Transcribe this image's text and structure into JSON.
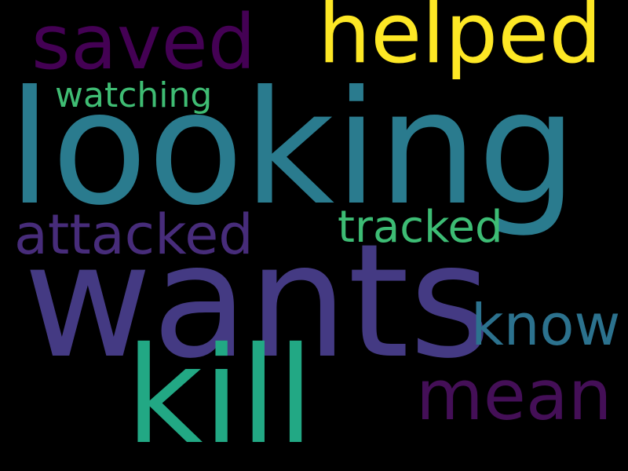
{
  "wordcloud": {
    "words": [
      {
        "id": "helped",
        "text": "helped",
        "color": "#fde725"
      },
      {
        "id": "saved",
        "text": "saved",
        "color": "#440154"
      },
      {
        "id": "watching",
        "text": "watching",
        "color": "#3fbc73"
      },
      {
        "id": "looking",
        "text": "looking",
        "color": "#2a7b8e"
      },
      {
        "id": "attacked",
        "text": "attacked",
        "color": "#472c7a"
      },
      {
        "id": "tracked",
        "text": "tracked",
        "color": "#3dbc74"
      },
      {
        "id": "wants",
        "text": "wants",
        "color": "#443a83"
      },
      {
        "id": "know",
        "text": "know",
        "color": "#2c728e"
      },
      {
        "id": "kill",
        "text": "kill",
        "color": "#22a884"
      },
      {
        "id": "mean",
        "text": "mean",
        "color": "#440f57"
      }
    ]
  }
}
